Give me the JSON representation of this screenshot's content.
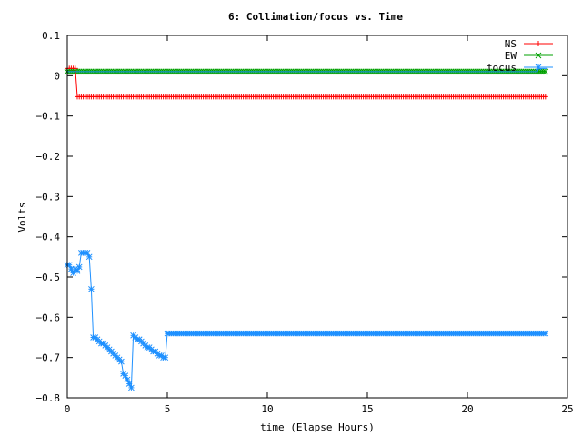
{
  "chart_data": {
    "type": "line",
    "title": "6: Collimation/focus vs. Time",
    "xlabel": "time (Elapse Hours)",
    "ylabel": "Volts",
    "xlim": [
      0,
      25
    ],
    "ylim": [
      -0.8,
      0.1
    ],
    "xticks": [
      0,
      5,
      10,
      15,
      20,
      25
    ],
    "yticks": [
      0.1,
      0,
      -0.1,
      -0.2,
      -0.3,
      -0.4,
      -0.5,
      -0.6,
      -0.7,
      -0.8
    ],
    "xtick_labels": [
      "0",
      "5",
      "10",
      "15",
      "20",
      "25"
    ],
    "ytick_labels": [
      "0.1",
      "0",
      "−0.1",
      "−0.2",
      "−0.3",
      "−0.4",
      "−0.5",
      "−0.6",
      "−0.7",
      "−0.8"
    ],
    "grid": false,
    "legend_position": "top-right",
    "series": [
      {
        "name": "NS",
        "color": "#ff0000",
        "marker": "plus",
        "segments": [
          {
            "x_start": 0.0,
            "x_end": 0.45,
            "step": 0.1,
            "y": 0.018
          },
          {
            "x_start": 0.5,
            "x_end": 23.9,
            "step": 0.1,
            "y": -0.052
          }
        ]
      },
      {
        "name": "EW",
        "color": "#00a000",
        "marker": "cross",
        "segments": [
          {
            "x_start": 0.0,
            "x_end": 23.9,
            "step": 0.1,
            "y": 0.01
          }
        ]
      },
      {
        "name": "focus",
        "color": "#1e90ff",
        "marker": "star",
        "points": [
          [
            0.0,
            -0.47
          ],
          [
            0.1,
            -0.47
          ],
          [
            0.2,
            -0.48
          ],
          [
            0.3,
            -0.49
          ],
          [
            0.4,
            -0.48
          ],
          [
            0.5,
            -0.485
          ],
          [
            0.6,
            -0.475
          ],
          [
            0.7,
            -0.44
          ],
          [
            0.8,
            -0.44
          ],
          [
            0.9,
            -0.44
          ],
          [
            1.0,
            -0.44
          ],
          [
            1.1,
            -0.45
          ],
          [
            1.2,
            -0.53
          ],
          [
            1.3,
            -0.65
          ],
          [
            1.4,
            -0.65
          ],
          [
            1.5,
            -0.655
          ],
          [
            1.6,
            -0.66
          ],
          [
            1.7,
            -0.665
          ],
          [
            1.8,
            -0.665
          ],
          [
            1.9,
            -0.67
          ],
          [
            2.0,
            -0.675
          ],
          [
            2.1,
            -0.68
          ],
          [
            2.2,
            -0.685
          ],
          [
            2.3,
            -0.69
          ],
          [
            2.4,
            -0.695
          ],
          [
            2.5,
            -0.7
          ],
          [
            2.6,
            -0.705
          ],
          [
            2.7,
            -0.71
          ],
          [
            2.8,
            -0.74
          ],
          [
            2.9,
            -0.745
          ],
          [
            3.0,
            -0.755
          ],
          [
            3.1,
            -0.765
          ],
          [
            3.2,
            -0.775
          ],
          [
            3.3,
            -0.645
          ],
          [
            3.4,
            -0.65
          ],
          [
            3.5,
            -0.655
          ],
          [
            3.6,
            -0.655
          ],
          [
            3.7,
            -0.66
          ],
          [
            3.8,
            -0.665
          ],
          [
            3.9,
            -0.67
          ],
          [
            4.0,
            -0.675
          ],
          [
            4.1,
            -0.675
          ],
          [
            4.2,
            -0.68
          ],
          [
            4.3,
            -0.685
          ],
          [
            4.4,
            -0.685
          ],
          [
            4.5,
            -0.69
          ],
          [
            4.6,
            -0.695
          ],
          [
            4.7,
            -0.695
          ],
          [
            4.8,
            -0.7
          ],
          [
            4.9,
            -0.7
          ],
          [
            5.0,
            -0.64
          ]
        ],
        "tail": {
          "x_start": 5.1,
          "x_end": 23.9,
          "step": 0.1,
          "y": -0.64
        },
        "upper_trace": [
          [
            0.0,
            0.01
          ],
          [
            23.5,
            0.01
          ],
          [
            23.55,
            0.018
          ],
          [
            24.0,
            0.018
          ]
        ]
      }
    ]
  }
}
